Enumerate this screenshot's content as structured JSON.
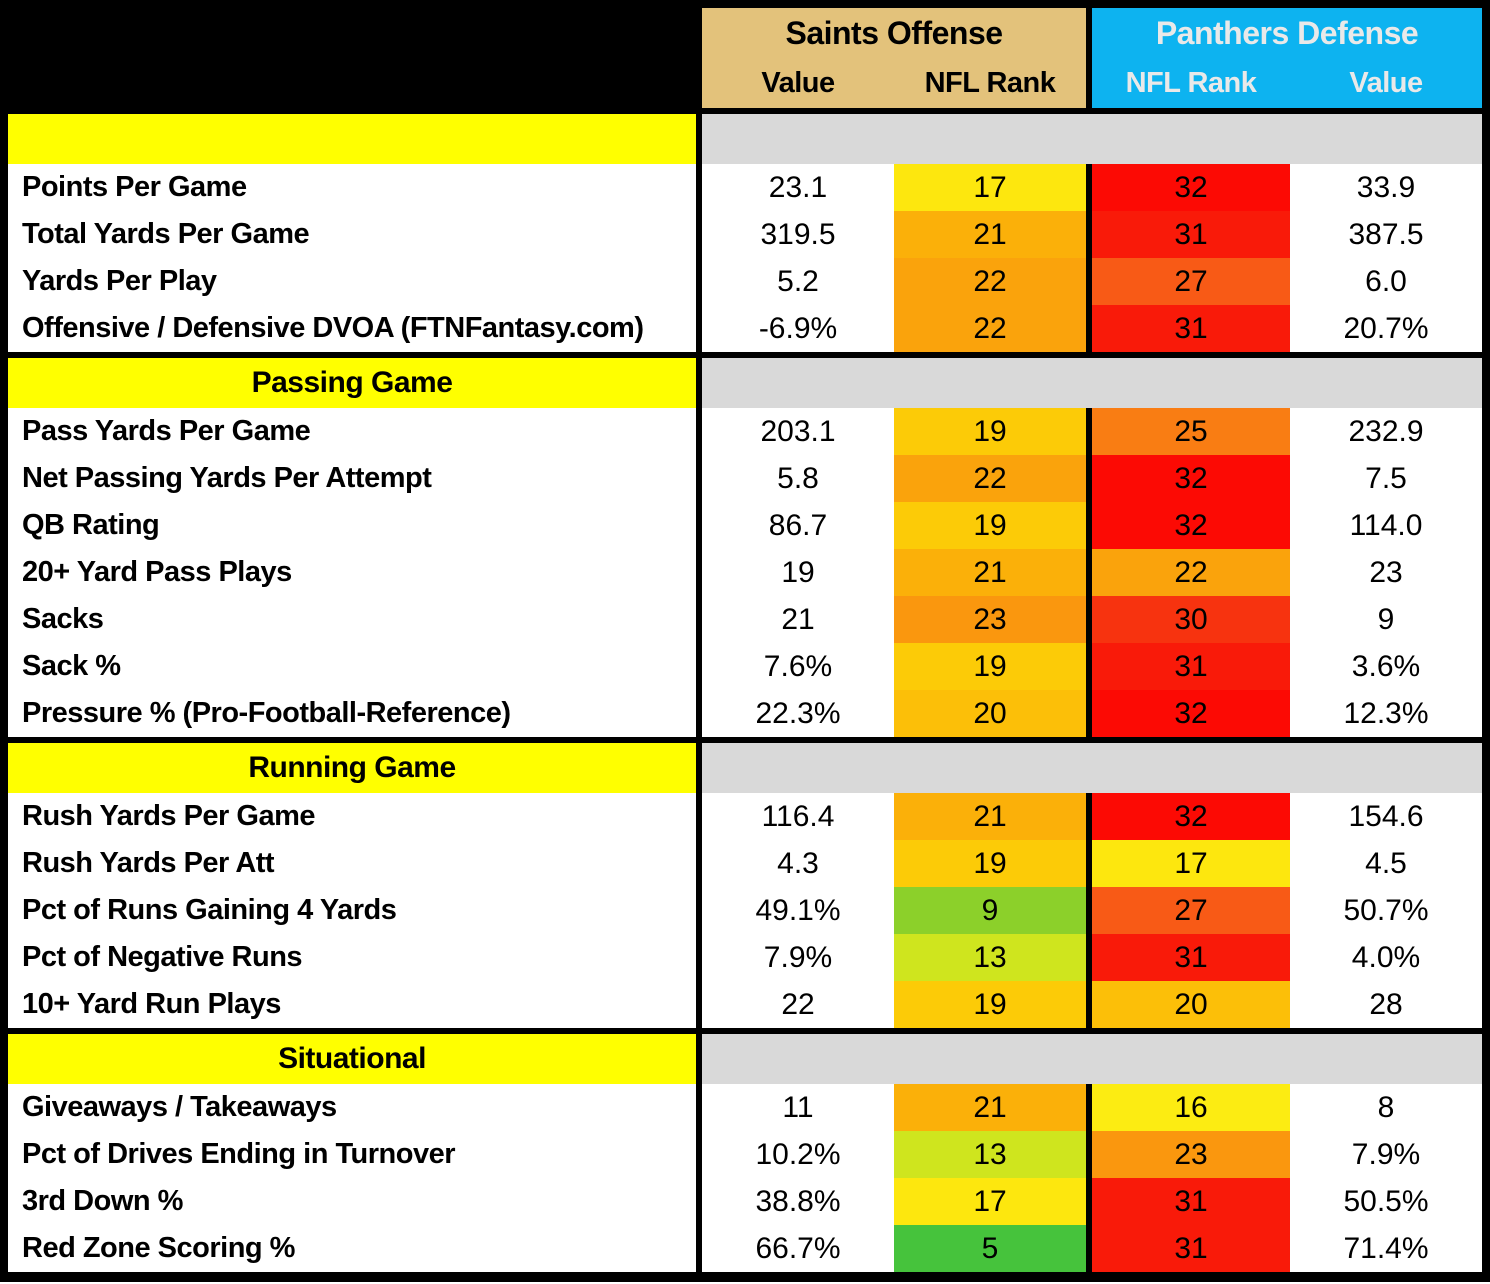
{
  "colors": {
    "saints_header_bg": "#e3c27b",
    "saints_header_text": "#000000",
    "panthers_header_bg": "#0db3f0",
    "panthers_header_text": "#e9e9e9",
    "section_header_bg": "#ffff00",
    "section_spacer_bg": "#d9d9d9",
    "grid_black": "#000000",
    "row_bg": "#ffffff"
  },
  "chart_data": {
    "type": "table",
    "title": "",
    "column_groups": [
      {
        "title": "Saints Offense",
        "columns": [
          "Value",
          "NFL Rank"
        ]
      },
      {
        "title": "Panthers Defense",
        "columns": [
          "NFL Rank",
          "Value"
        ]
      }
    ],
    "rank_colors": {
      "5": "#46c33c",
      "9": "#8cd02a",
      "13": "#cfe51e",
      "16": "#fcec12",
      "17": "#fde70e",
      "19": "#fccb07",
      "20": "#fcbf08",
      "21": "#fbb009",
      "22": "#faa30c",
      "23": "#fa970e",
      "25": "#f97d13",
      "27": "#f85a16",
      "30": "#f7330f",
      "31": "#f91a09",
      "32": "#fc0a04"
    },
    "sections": [
      {
        "title": "",
        "rows": [
          {
            "label": "Points Per Game",
            "offense_value": "23.1",
            "offense_rank": 17,
            "defense_rank": 32,
            "defense_value": "33.9"
          },
          {
            "label": "Total Yards Per Game",
            "offense_value": "319.5",
            "offense_rank": 21,
            "defense_rank": 31,
            "defense_value": "387.5"
          },
          {
            "label": "Yards Per Play",
            "offense_value": "5.2",
            "offense_rank": 22,
            "defense_rank": 27,
            "defense_value": "6.0"
          },
          {
            "label": "Offensive / Defensive DVOA (FTNFantasy.com)",
            "offense_value": "-6.9%",
            "offense_rank": 22,
            "defense_rank": 31,
            "defense_value": "20.7%"
          }
        ]
      },
      {
        "title": "Passing Game",
        "rows": [
          {
            "label": "Pass Yards Per Game",
            "offense_value": "203.1",
            "offense_rank": 19,
            "defense_rank": 25,
            "defense_value": "232.9"
          },
          {
            "label": "Net Passing Yards Per Attempt",
            "offense_value": "5.8",
            "offense_rank": 22,
            "defense_rank": 32,
            "defense_value": "7.5"
          },
          {
            "label": "QB Rating",
            "offense_value": "86.7",
            "offense_rank": 19,
            "defense_rank": 32,
            "defense_value": "114.0"
          },
          {
            "label": "20+ Yard Pass Plays",
            "offense_value": "19",
            "offense_rank": 21,
            "defense_rank": 22,
            "defense_value": "23"
          },
          {
            "label": "Sacks",
            "offense_value": "21",
            "offense_rank": 23,
            "defense_rank": 30,
            "defense_value": "9"
          },
          {
            "label": "Sack %",
            "offense_value": "7.6%",
            "offense_rank": 19,
            "defense_rank": 31,
            "defense_value": "3.6%"
          },
          {
            "label": "Pressure % (Pro-Football-Reference)",
            "offense_value": "22.3%",
            "offense_rank": 20,
            "defense_rank": 32,
            "defense_value": "12.3%"
          }
        ]
      },
      {
        "title": "Running Game",
        "rows": [
          {
            "label": "Rush Yards Per Game",
            "offense_value": "116.4",
            "offense_rank": 21,
            "defense_rank": 32,
            "defense_value": "154.6"
          },
          {
            "label": "Rush Yards Per Att",
            "offense_value": "4.3",
            "offense_rank": 19,
            "defense_rank": 17,
            "defense_value": "4.5"
          },
          {
            "label": "Pct of Runs Gaining 4 Yards",
            "offense_value": "49.1%",
            "offense_rank": 9,
            "defense_rank": 27,
            "defense_value": "50.7%"
          },
          {
            "label": "Pct of Negative Runs",
            "offense_value": "7.9%",
            "offense_rank": 13,
            "defense_rank": 31,
            "defense_value": "4.0%"
          },
          {
            "label": "10+ Yard Run Plays",
            "offense_value": "22",
            "offense_rank": 19,
            "defense_rank": 20,
            "defense_value": "28"
          }
        ]
      },
      {
        "title": "Situational",
        "rows": [
          {
            "label": "Giveaways / Takeaways",
            "offense_value": "11",
            "offense_rank": 21,
            "defense_rank": 16,
            "defense_value": "8"
          },
          {
            "label": "Pct of Drives Ending in Turnover",
            "offense_value": "10.2%",
            "offense_rank": 13,
            "defense_rank": 23,
            "defense_value": "7.9%"
          },
          {
            "label": "3rd Down %",
            "offense_value": "38.8%",
            "offense_rank": 17,
            "defense_rank": 31,
            "defense_value": "50.5%"
          },
          {
            "label": "Red Zone Scoring %",
            "offense_value": "66.7%",
            "offense_rank": 5,
            "defense_rank": 31,
            "defense_value": "71.4%"
          }
        ]
      }
    ]
  }
}
